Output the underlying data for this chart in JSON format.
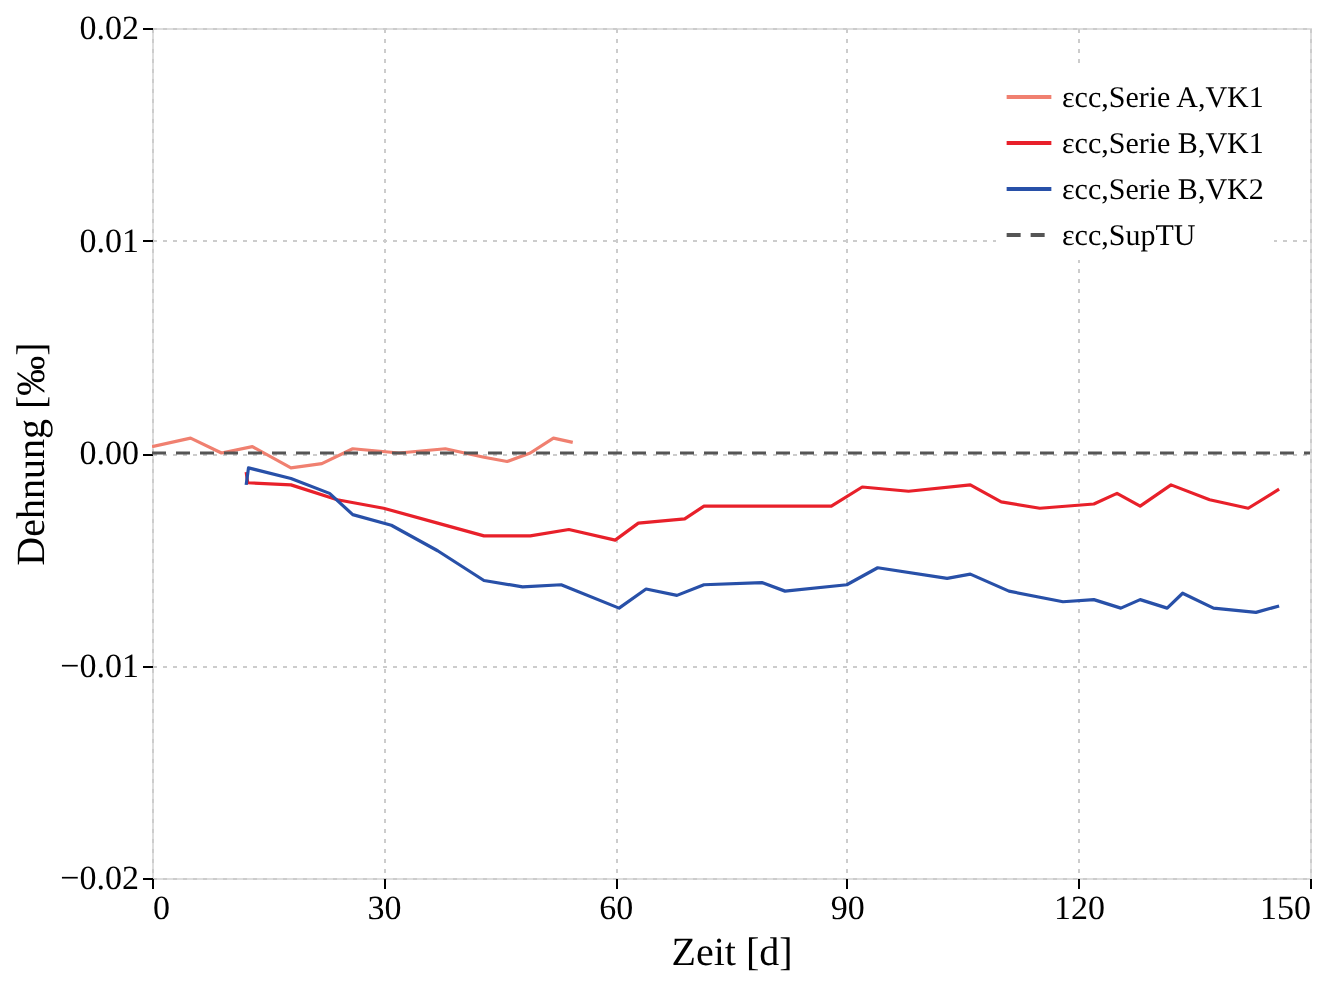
{
  "chart_data": {
    "type": "line",
    "xlabel": "Zeit [d]",
    "ylabel": "Dehnung [‰]",
    "xlim": [
      0,
      150
    ],
    "xticks": [
      0,
      30,
      60,
      90,
      120,
      150
    ],
    "ylim": [
      -0.02,
      0.02
    ],
    "yticks": [
      {
        "value": -0.02,
        "label": "−0.02"
      },
      {
        "value": -0.01,
        "label": "−0.01"
      },
      {
        "value": 0,
        "label": "0.00"
      },
      {
        "value": 0.01,
        "label": "0.01"
      },
      {
        "value": 0.02,
        "label": "0.02"
      }
    ],
    "grid": true,
    "legend": "top right",
    "marker": "none",
    "series": [
      {
        "name": "εcc,Serie A,VK1",
        "color": "#f08070",
        "line_style": "solid",
        "x": [
          0,
          5,
          9,
          13,
          18,
          22,
          26,
          32,
          38,
          43,
          46,
          49,
          52,
          54.5
        ],
        "values": [
          0.0003,
          0.0007,
          0.0,
          0.0003,
          -0.0007,
          -0.0005,
          0.0002,
          0.0,
          0.0002,
          -0.0002,
          -0.0004,
          0.0,
          0.0007,
          0.0005
        ]
      },
      {
        "name": "εcc,Serie B,VK1",
        "color": "#e8202a",
        "line_style": "solid",
        "x": [
          12.2,
          12.4,
          18,
          24,
          30,
          37,
          43,
          49,
          54,
          60,
          63,
          69,
          71.5,
          78,
          88,
          92,
          98,
          106,
          110,
          115,
          122,
          125,
          128,
          132,
          137,
          142,
          146
        ],
        "values": [
          -0.0009,
          -0.0014,
          -0.0015,
          -0.0022,
          -0.0026,
          -0.0033,
          -0.0039,
          -0.0039,
          -0.0036,
          -0.0041,
          -0.0033,
          -0.0031,
          -0.0025,
          -0.0025,
          -0.0025,
          -0.0016,
          -0.0018,
          -0.0015,
          -0.0023,
          -0.0026,
          -0.0024,
          -0.0019,
          -0.0025,
          -0.0015,
          -0.0022,
          -0.0026,
          -0.0017
        ]
      },
      {
        "name": "εcc,Serie B,VK2",
        "color": "#2850a8",
        "line_style": "solid",
        "x": [
          12.2,
          12.5,
          18,
          23,
          26,
          31,
          37,
          43,
          48,
          53,
          60.5,
          64,
          68,
          71.5,
          79,
          82,
          90,
          94,
          103,
          106,
          111,
          118,
          122,
          125.5,
          128,
          131.5,
          133.5,
          137.5,
          143,
          146
        ],
        "values": [
          -0.0015,
          -0.0007,
          -0.0012,
          -0.0019,
          -0.0029,
          -0.0034,
          -0.0046,
          -0.006,
          -0.0063,
          -0.0062,
          -0.0073,
          -0.0064,
          -0.0067,
          -0.0062,
          -0.0061,
          -0.0065,
          -0.0062,
          -0.0054,
          -0.0059,
          -0.0057,
          -0.0065,
          -0.007,
          -0.0069,
          -0.0073,
          -0.0069,
          -0.0073,
          -0.0066,
          -0.0073,
          -0.0075,
          -0.0072
        ]
      },
      {
        "name": "εcc,SupTU",
        "color": "#555555",
        "line_style": "dashed",
        "x": [
          0,
          150
        ],
        "values": [
          0,
          0
        ]
      }
    ]
  }
}
